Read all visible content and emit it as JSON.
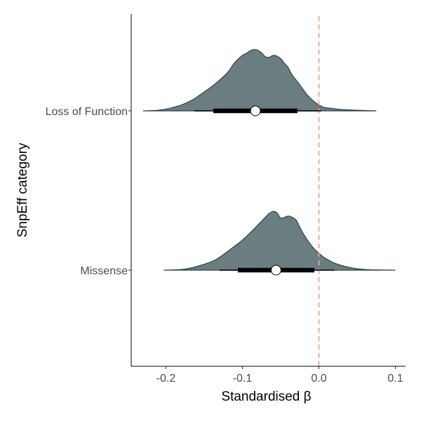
{
  "chart_data": {
    "type": "halfeye",
    "xlabel": "Standardised β",
    "ylabel": "SnpEff category",
    "xlim": [
      -0.245,
      0.115
    ],
    "x_ticks": [
      -0.2,
      -0.1,
      0.0,
      0.1
    ],
    "x_tick_labels": [
      "-0.2",
      "-0.1",
      "0.0",
      "0.1"
    ],
    "reference_line": {
      "x": 0.0,
      "style": "dashed",
      "color": "#f0a58a"
    },
    "grid": false,
    "colors": {
      "density_fill": "#6a7d81",
      "density_stroke": "#2e4248",
      "interval": "#000000",
      "point_fill": "#ffffff"
    },
    "categories": [
      {
        "label": "Loss of Function",
        "point_estimate": -0.083,
        "interval_66": [
          -0.138,
          -0.028
        ],
        "interval_95": [
          -0.163,
          0.003
        ],
        "density": {
          "x": [
            -0.23,
            -0.21,
            -0.195,
            -0.18,
            -0.165,
            -0.15,
            -0.135,
            -0.12,
            -0.11,
            -0.1,
            -0.095,
            -0.09,
            -0.085,
            -0.08,
            -0.075,
            -0.07,
            -0.065,
            -0.06,
            -0.055,
            -0.05,
            -0.045,
            -0.04,
            -0.035,
            -0.025,
            -0.015,
            -0.005,
            0.005,
            0.015,
            0.03,
            0.05,
            0.075
          ],
          "y": [
            0.0,
            0.01,
            0.04,
            0.09,
            0.17,
            0.29,
            0.42,
            0.58,
            0.74,
            0.85,
            0.88,
            0.92,
            0.94,
            0.93,
            0.89,
            0.83,
            0.82,
            0.85,
            0.84,
            0.8,
            0.73,
            0.66,
            0.55,
            0.4,
            0.24,
            0.13,
            0.06,
            0.04,
            0.02,
            0.01,
            0.0
          ]
        }
      },
      {
        "label": "Missense",
        "point_estimate": -0.056,
        "interval_66": [
          -0.106,
          -0.006
        ],
        "interval_95": [
          -0.13,
          0.02
        ],
        "density": {
          "x": [
            -0.203,
            -0.18,
            -0.165,
            -0.15,
            -0.135,
            -0.12,
            -0.11,
            -0.1,
            -0.09,
            -0.08,
            -0.07,
            -0.065,
            -0.06,
            -0.055,
            -0.05,
            -0.045,
            -0.04,
            -0.035,
            -0.03,
            -0.025,
            -0.02,
            -0.015,
            -0.01,
            -0.005,
            0.0,
            0.005,
            0.01,
            0.02,
            0.03,
            0.045,
            0.06,
            0.08,
            0.1
          ],
          "y": [
            0.0,
            0.01,
            0.04,
            0.09,
            0.16,
            0.28,
            0.37,
            0.46,
            0.57,
            0.69,
            0.81,
            0.87,
            0.9,
            0.88,
            0.8,
            0.81,
            0.83,
            0.81,
            0.77,
            0.66,
            0.55,
            0.46,
            0.38,
            0.31,
            0.26,
            0.21,
            0.17,
            0.11,
            0.07,
            0.03,
            0.01,
            0.003,
            0.0
          ]
        }
      }
    ]
  }
}
